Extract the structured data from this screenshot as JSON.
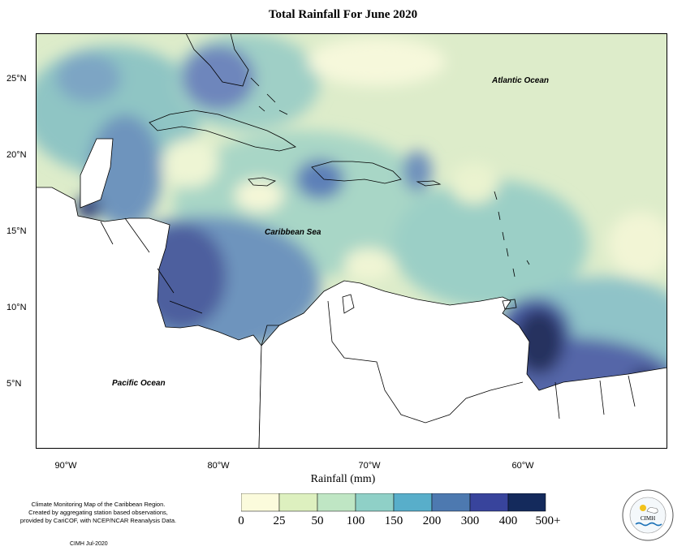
{
  "title": "Total Rainfall For June 2020",
  "map": {
    "lat_ticks": [
      "25°N",
      "20°N",
      "15°N",
      "10°N",
      "5°N"
    ],
    "lon_ticks": [
      "90°W",
      "80°W",
      "70°W",
      "60°W"
    ],
    "places": {
      "atlantic": "Atlantic Ocean",
      "caribbean": "Caribbean Sea",
      "pacific": "Pacific Ocean"
    },
    "colors": {
      "land": "#ffffff",
      "border": "#000000"
    }
  },
  "legend": {
    "title": "Rainfall (mm)",
    "breaks": [
      "0",
      "25",
      "50",
      "100",
      "150",
      "200",
      "300",
      "400",
      "500+"
    ],
    "colors": [
      "#fbfbdc",
      "#ddf0bf",
      "#bfe6c4",
      "#8fd0c7",
      "#58aeca",
      "#4d79b0",
      "#38449c",
      "#262e80",
      "#142a5c"
    ]
  },
  "credits": {
    "lines": [
      "Climate Monitoring Map of the Caribbean Region.",
      "Created by aggregating station based observations,",
      "provided by CariCOF, with NCEP/NCAR Reanalysis Data."
    ],
    "stamp": "CIMH Jul-2020",
    "logo_text": "CIMH"
  }
}
